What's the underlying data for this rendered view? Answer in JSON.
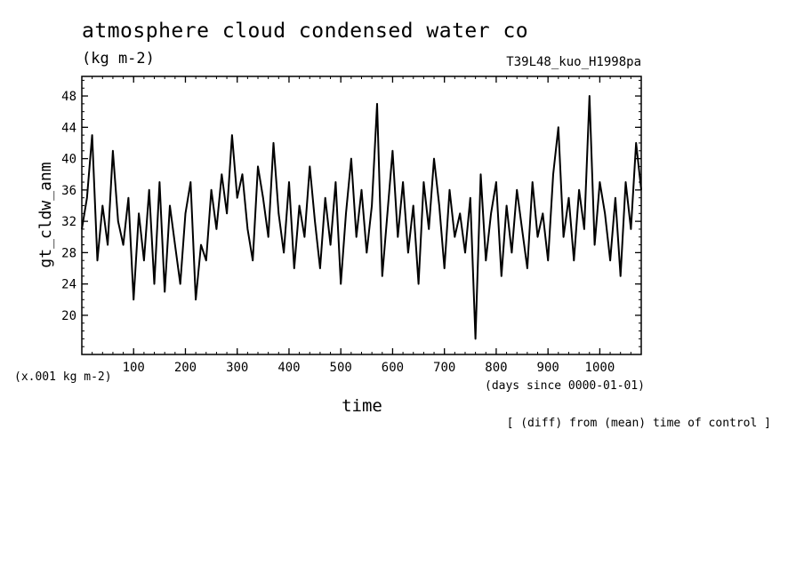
{
  "header": {
    "title": "atmosphere cloud condensed water co",
    "unit": "(kg m-2)",
    "run_name": "T39L48_kuo_H1998pa",
    "footnote": "[ (diff) from (mean) time of control ]"
  },
  "chart_data": {
    "type": "line",
    "title": "atmosphere cloud condensed water co",
    "xlabel": "time",
    "xunit": "(days since 0000-01-01)",
    "ylabel": "gt_cldw_anm",
    "yunit": "(x.001 kg m-2)",
    "xlim": [
      0,
      1080
    ],
    "ylim": [
      15,
      50.5
    ],
    "xticks": [
      100,
      200,
      300,
      400,
      500,
      600,
      700,
      800,
      900,
      1000
    ],
    "yticks": [
      20,
      24,
      28,
      32,
      36,
      40,
      44,
      48
    ],
    "grid": false,
    "series": [
      {
        "x": [
          0,
          10,
          20,
          30,
          40,
          50,
          60,
          70,
          80,
          90,
          100,
          110,
          120,
          130,
          140,
          150,
          160,
          170,
          180,
          190,
          200,
          210,
          220,
          230,
          240,
          250,
          260,
          270,
          280,
          290,
          300,
          310,
          320,
          330,
          340,
          350,
          360,
          370,
          380,
          390,
          400,
          410,
          420,
          430,
          440,
          450,
          460,
          470,
          480,
          490,
          500,
          510,
          520,
          530,
          540,
          550,
          560,
          570,
          580,
          590,
          600,
          610,
          620,
          630,
          640,
          650,
          660,
          670,
          680,
          690,
          700,
          710,
          720,
          730,
          740,
          750,
          760,
          770,
          780,
          790,
          800,
          810,
          820,
          830,
          840,
          850,
          860,
          870,
          880,
          890,
          900,
          910,
          920,
          930,
          940,
          950,
          960,
          970,
          980,
          990,
          1000,
          1010,
          1020,
          1030,
          1040,
          1050,
          1060,
          1070,
          1080
        ],
        "values": [
          31,
          35,
          43,
          27,
          34,
          29,
          41,
          32,
          29,
          35,
          22,
          33,
          27,
          36,
          24,
          37,
          23,
          34,
          29,
          24,
          33,
          37,
          22,
          29,
          27,
          36,
          31,
          38,
          33,
          43,
          35,
          38,
          31,
          27,
          39,
          35,
          30,
          42,
          33,
          28,
          37,
          26,
          34,
          30,
          39,
          32,
          26,
          35,
          29,
          37,
          24,
          33,
          40,
          30,
          36,
          28,
          34,
          47,
          25,
          33,
          41,
          30,
          37,
          28,
          34,
          24,
          37,
          31,
          40,
          34,
          26,
          36,
          30,
          33,
          28,
          35,
          17,
          38,
          27,
          33,
          37,
          25,
          34,
          28,
          36,
          31,
          26,
          37,
          30,
          33,
          27,
          38,
          44,
          30,
          35,
          27,
          36,
          31,
          48,
          29,
          37,
          33,
          27,
          35,
          25,
          37,
          31,
          42,
          36
        ]
      }
    ]
  }
}
